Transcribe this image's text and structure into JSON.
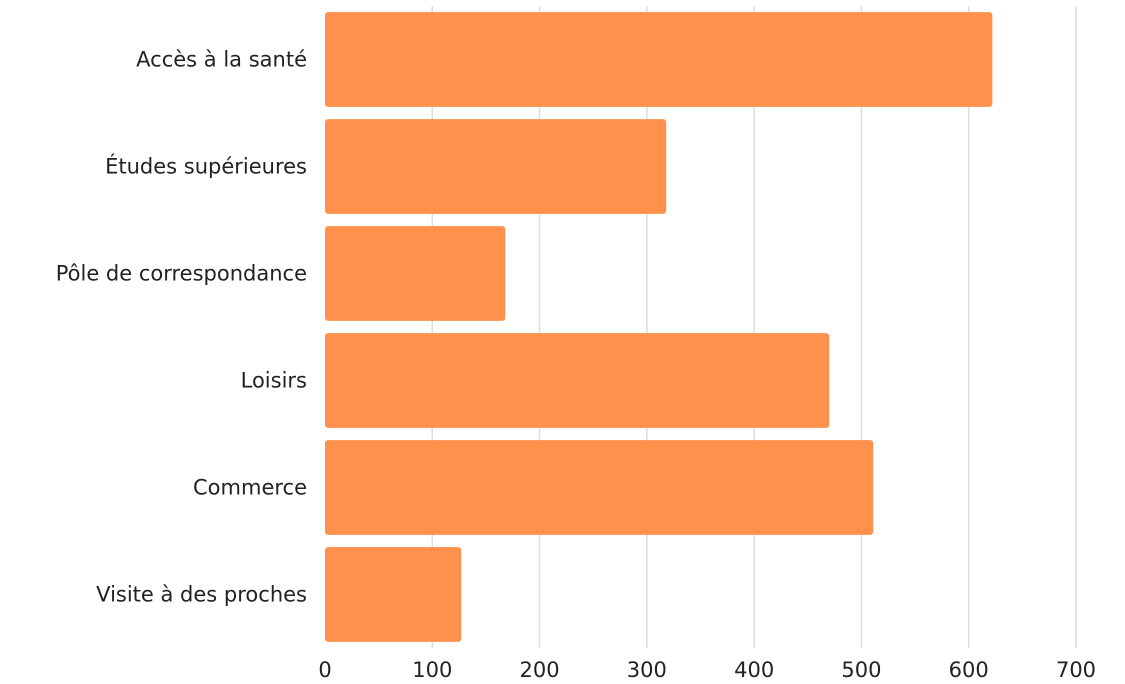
{
  "chart_data": {
    "type": "bar",
    "orientation": "horizontal",
    "categories": [
      "Accès à la santé",
      "Études supérieures",
      "Pôle de correspondance",
      "Loisirs",
      "Commerce",
      "Visite à des proches"
    ],
    "values": [
      622,
      318,
      168,
      470,
      511,
      127
    ],
    "xlim": [
      0,
      700
    ],
    "xticks": [
      "0",
      "100",
      "200",
      "300",
      "400",
      "500",
      "600",
      "700"
    ],
    "title": "",
    "xlabel": "",
    "ylabel": "",
    "grid": "vertical",
    "bar_color": "#FF914D"
  }
}
